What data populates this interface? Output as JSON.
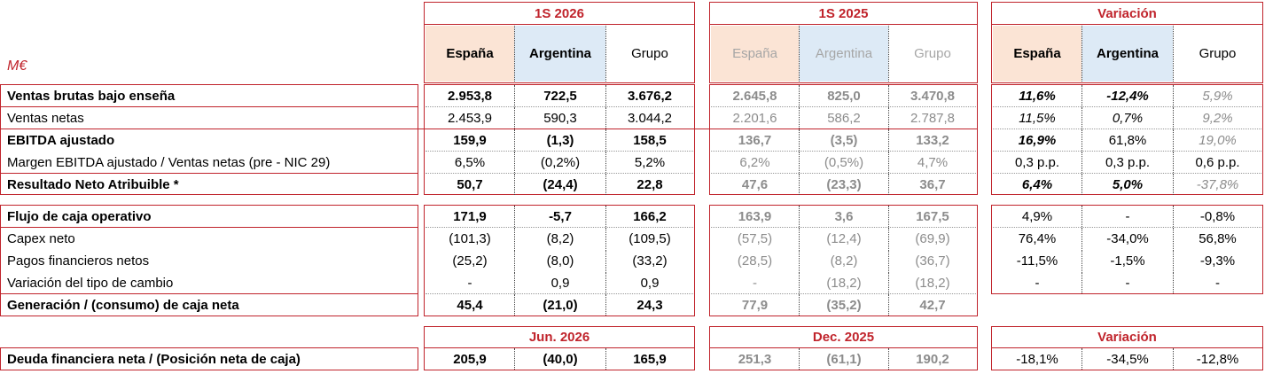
{
  "unit_label": "M€",
  "groups": {
    "g1": {
      "title": "1S 2026",
      "bottom_title": "Jun. 2026",
      "cols": [
        "España",
        "Argentina",
        "Grupo"
      ]
    },
    "g2": {
      "title": "1S 2025",
      "bottom_title": "Dec. 2025",
      "cols": [
        "España",
        "Argentina",
        "Grupo"
      ]
    },
    "g3": {
      "title": "Variación",
      "bottom_title": "Variación",
      "cols": [
        "España",
        "Argentina",
        "Grupo"
      ]
    }
  },
  "rows": [
    {
      "label": "Ventas brutas bajo enseña",
      "v": [
        "2.953,8",
        "722,5",
        "3.676,2",
        "2.645,8",
        "825,0",
        "3.470,8",
        "11,6%",
        "-12,4%",
        "5,9%"
      ]
    },
    {
      "label": "Ventas netas",
      "v": [
        "2.453,9",
        "590,3",
        "3.044,2",
        "2.201,6",
        "586,2",
        "2.787,8",
        "11,5%",
        "0,7%",
        "9,2%"
      ]
    },
    {
      "label": "EBITDA ajustado",
      "v": [
        "159,9",
        "(1,3)",
        "158,5",
        "136,7",
        "(3,5)",
        "133,2",
        "16,9%",
        "61,8%",
        "19,0%"
      ]
    },
    {
      "label": "Margen EBITDA ajustado / Ventas netas (pre - NIC 29)",
      "v": [
        "6,5%",
        "(0,2%)",
        "5,2%",
        "6,2%",
        "(0,5%)",
        "4,7%",
        "0,3 p.p.",
        "0,3 p.p.",
        "0,6 p.p."
      ]
    },
    {
      "label": "Resultado Neto Atribuible *",
      "v": [
        "50,7",
        "(24,4)",
        "22,8",
        "47,6",
        "(23,3)",
        "36,7",
        "6,4%",
        "5,0%",
        "-37,8%"
      ]
    },
    {
      "label": "Flujo de caja operativo",
      "v": [
        "171,9",
        "-5,7",
        "166,2",
        "163,9",
        "3,6",
        "167,5",
        "4,9%",
        "-",
        "-0,8%"
      ]
    },
    {
      "label": "Capex neto",
      "v": [
        "(101,3)",
        "(8,2)",
        "(109,5)",
        "(57,5)",
        "(12,4)",
        "(69,9)",
        "76,4%",
        "-34,0%",
        "56,8%"
      ]
    },
    {
      "label": "Pagos financieros netos",
      "v": [
        "(25,2)",
        "(8,0)",
        "(33,2)",
        "(28,5)",
        "(8,2)",
        "(36,7)",
        "-11,5%",
        "-1,5%",
        "-9,3%"
      ]
    },
    {
      "label": "Variación del tipo de cambio",
      "v": [
        "-",
        "0,9",
        "0,9",
        "-",
        "(18,2)",
        "(18,2)",
        "-",
        "-",
        "-"
      ]
    },
    {
      "label": "Generación / (consumo) de caja neta",
      "v": [
        "45,4",
        "(21,0)",
        "24,3",
        "77,9",
        "(35,2)",
        "42,7"
      ]
    },
    {
      "label": "Deuda financiera neta / (Posición neta de caja)",
      "v": [
        "205,9",
        "(40,0)",
        "165,9",
        "251,3",
        "(61,1)",
        "190,2",
        "-18,1%",
        "-34,5%",
        "-12,8%"
      ]
    }
  ],
  "colors": {
    "accent": "#c0232b",
    "espana_fill": "#fbe4d5",
    "argentina_fill": "#ddeaf6",
    "muted_text": "#8c8c8c"
  }
}
